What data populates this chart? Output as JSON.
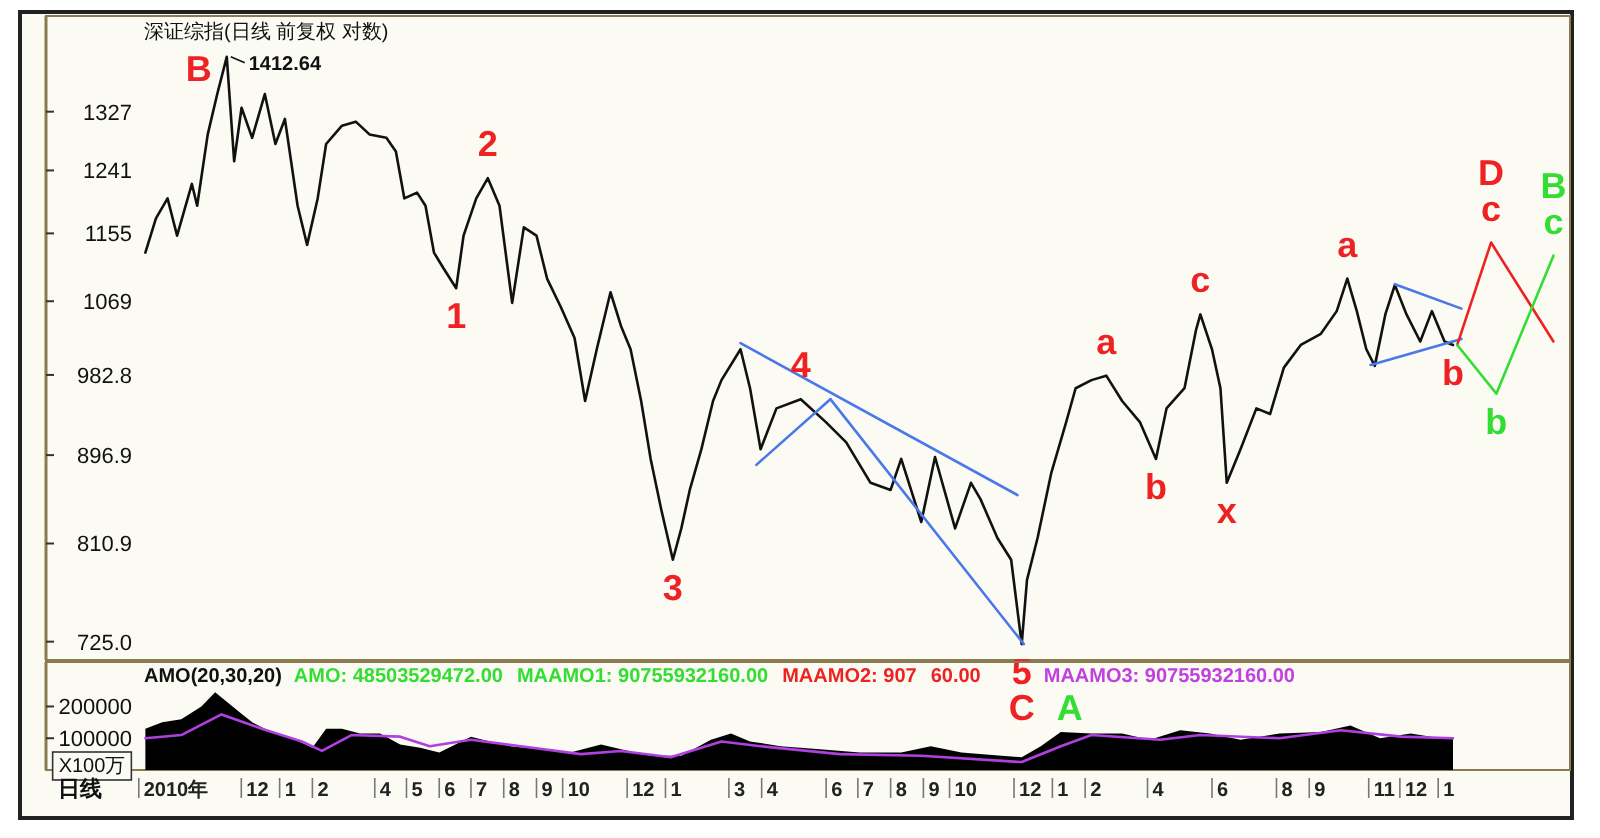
{
  "chart_data": [
    {
      "type": "line",
      "title": "深证综指(日线 前复权 对数)",
      "xlim": [
        "2010-05-15",
        "2014-04-20"
      ],
      "ylim": [
        710,
        1480
      ],
      "log": "y",
      "tick_labels": "y",
      "yticks": [
        {
          "value": 725,
          "label": "725.0"
        },
        810.9,
        896.9,
        982.8,
        1069,
        1155,
        1241,
        1327
      ],
      "series": [
        {
          "color": "#111111",
          "x": [
            "2010-08-17",
            "2010-08-27",
            "2010-09-07",
            "2010-09-16",
            "2010-09-30",
            "2010-10-05",
            "2010-10-15",
            "2010-10-24",
            "2010-11-02",
            "2010-11-09",
            "2010-11-16",
            "2010-11-26",
            "2010-12-08",
            "2010-12-18",
            "2010-12-27",
            "2011-01-08",
            "2011-01-17",
            "2011-01-27",
            "2011-02-04",
            "2011-02-19",
            "2011-03-04",
            "2011-03-17",
            "2011-04-02",
            "2011-04-11",
            "2011-04-19",
            "2011-05-01",
            "2011-05-09",
            "2011-05-17",
            "2011-05-26",
            "2011-06-07",
            "2011-06-14",
            "2011-06-26",
            "2011-07-07",
            "2011-07-18",
            "2011-07-30",
            "2011-08-10",
            "2011-08-22",
            "2011-09-01",
            "2011-09-14",
            "2011-09-27",
            "2011-10-07",
            "2011-10-18",
            "2011-10-31",
            "2011-11-10",
            "2011-11-19",
            "2011-11-29",
            "2011-12-08",
            "2011-12-18",
            "2011-12-29",
            "2012-01-06",
            "2012-01-14",
            "2012-01-25",
            "2012-02-05",
            "2012-02-13",
            "2012-03-02",
            "2012-03-11",
            "2012-03-21",
            "2012-04-05",
            "2012-04-28",
            "2012-05-22",
            "2012-06-10",
            "2012-07-03",
            "2012-07-22",
            "2012-08-01",
            "2012-08-20",
            "2012-09-02",
            "2012-09-21",
            "2012-10-06",
            "2012-10-15",
            "2012-10-31",
            "2012-11-13",
            "2012-11-23",
            "2012-11-28",
            "2012-12-08",
            "2012-12-21",
            "2013-01-04",
            "2013-01-13",
            "2013-01-28",
            "2013-02-11",
            "2013-02-26",
            "2013-03-15",
            "2013-03-30",
            "2013-04-09",
            "2013-04-26",
            "2013-05-07",
            "2013-05-11",
            "2013-05-22",
            "2013-05-30",
            "2013-06-05",
            "2013-06-18",
            "2013-07-03",
            "2013-07-16",
            "2013-07-29",
            "2013-08-14",
            "2013-09-02",
            "2013-09-17",
            "2013-09-27",
            "2013-10-06",
            "2013-10-15",
            "2013-10-23",
            "2013-11-02",
            "2013-11-11",
            "2013-11-22",
            "2013-12-05",
            "2013-12-16",
            "2013-12-28",
            "2014-01-05"
          ],
          "values": [
            1130,
            1175,
            1202,
            1152,
            1222,
            1192,
            1293,
            1354,
            1412.64,
            1254,
            1333,
            1288,
            1354,
            1279,
            1316,
            1192,
            1140,
            1202,
            1279,
            1306,
            1312,
            1293,
            1288,
            1268,
            1202,
            1210,
            1192,
            1130,
            1110,
            1085,
            1152,
            1202,
            1230,
            1192,
            1067,
            1163,
            1152,
            1097,
            1062,
            1025,
            954,
            1012,
            1080,
            1039,
            1012,
            954,
            893,
            843,
            796,
            825,
            862,
            903,
            954,
            977,
            1012,
            968,
            903,
            946,
            956,
            931,
            910,
            869,
            862,
            893,
            831,
            895,
            825,
            869,
            853,
            816,
            796,
            723,
            778,
            816,
            879,
            931,
            968,
            977,
            982,
            954,
            931,
            893,
            946,
            968,
            1035,
            1053,
            1012,
            968,
            869,
            903,
            946,
            940,
            991,
            1017,
            1030,
            1057,
            1097,
            1057,
            1012,
            993,
            1053,
            1089,
            1053,
            1021,
            1057,
            1021,
            1017
          ]
        },
        {
          "color": "#4a78e8",
          "x": [
            "2012-03-02",
            "2012-11-19"
          ],
          "values": [
            1019,
            857
          ]
        },
        {
          "color": "#4a78e8",
          "x": [
            "2012-03-17",
            "2012-05-26"
          ],
          "values": [
            887,
            956
          ]
        },
        {
          "color": "#4a78e8",
          "x": [
            "2012-05-26",
            "2012-11-25"
          ],
          "values": [
            956,
            723
          ]
        },
        {
          "color": "#4a78e8",
          "x": [
            "2013-11-11",
            "2014-01-13"
          ],
          "values": [
            1090,
            1060
          ]
        },
        {
          "color": "#4a78e8",
          "x": [
            "2013-10-19",
            "2014-01-13"
          ],
          "values": [
            994,
            1024
          ]
        },
        {
          "color": "#ee2222",
          "x": [
            "2014-01-09",
            "2014-02-10",
            "2014-04-10"
          ],
          "values": [
            1017,
            1143,
            1021
          ]
        },
        {
          "color": "#33dd33",
          "x": [
            "2014-01-09",
            "2014-02-15",
            "2014-04-10"
          ],
          "values": [
            1017,
            962,
            1126
          ]
        }
      ],
      "annotations": [
        {
          "text": "B",
          "x": "2010-11-02",
          "y": 1412.64
        },
        {
          "text": "1412.64",
          "x": "2010-11-02",
          "y": 1412.64
        },
        {
          "text": "1",
          "x": "2011-06-07",
          "y": 1085
        },
        {
          "text": "2",
          "x": "2011-07-07",
          "y": 1230
        },
        {
          "text": "3",
          "x": "2011-12-29",
          "y": 796
        },
        {
          "text": "4",
          "x": "2012-04-28",
          "y": 956
        },
        {
          "text": "5",
          "x": "2012-11-23",
          "y": 723
        },
        {
          "text": "C",
          "x": "2012-11-23",
          "y": 723
        },
        {
          "text": "A",
          "x": "2012-11-23",
          "y": 723
        },
        {
          "text": "a",
          "x": "2013-02-11",
          "y": 982
        },
        {
          "text": "b",
          "x": "2013-03-30",
          "y": 893
        },
        {
          "text": "c",
          "x": "2013-05-11",
          "y": 1053
        },
        {
          "text": "x",
          "x": "2013-06-05",
          "y": 869
        },
        {
          "text": "a",
          "x": "2013-09-27",
          "y": 1097
        },
        {
          "text": "b",
          "x": "2014-01-05",
          "y": 1017
        },
        {
          "text": "c",
          "x": "2014-02-10",
          "y": 1143
        },
        {
          "text": "D",
          "x": "2014-02-10",
          "y": 1143
        },
        {
          "text": "c",
          "x": "2014-04-10",
          "y": 1126
        },
        {
          "text": "B",
          "x": "2014-04-10",
          "y": 1126
        },
        {
          "text": "b",
          "x": "2014-02-15",
          "y": 962
        }
      ]
    },
    {
      "type": "area",
      "title": "AMO(20,30,20)",
      "xlabel": "日线",
      "ylabel": "X100万",
      "xlim": [
        "2010-05-15",
        "2014-04-20"
      ],
      "ylim": [
        0,
        340000
      ],
      "yticks": [
        100000,
        200000
      ],
      "xticks": [
        {
          "value": "2010-09-15",
          "label": "2010年"
        },
        {
          "value": "2010-12",
          "label": "12"
        },
        {
          "value": "2011-01",
          "label": "1"
        },
        {
          "value": "2011-02",
          "label": "2"
        },
        {
          "value": "2011-04",
          "label": "4"
        },
        {
          "value": "2011-05",
          "label": "5"
        },
        {
          "value": "2011-06",
          "label": "6"
        },
        {
          "value": "2011-07",
          "label": "7"
        },
        {
          "value": "2011-08",
          "label": "8"
        },
        {
          "value": "2011-09",
          "label": "9"
        },
        {
          "value": "2011-10",
          "label": "10"
        },
        {
          "value": "2011-12",
          "label": "12"
        },
        {
          "value": "2012-01",
          "label": "1"
        },
        {
          "value": "2012-03",
          "label": "3"
        },
        {
          "value": "2012-04",
          "label": "4"
        },
        {
          "value": "2012-06",
          "label": "6"
        },
        {
          "value": "2012-07",
          "label": "7"
        },
        {
          "value": "2012-08",
          "label": "8"
        },
        {
          "value": "2012-09",
          "label": "9"
        },
        {
          "value": "2012-10",
          "label": "10"
        },
        {
          "value": "2012-12",
          "label": "12"
        },
        {
          "value": "2013-01",
          "label": "1"
        },
        {
          "value": "2013-02",
          "label": "2"
        },
        {
          "value": "2013-04",
          "label": "4"
        },
        {
          "value": "2013-06",
          "label": "6"
        },
        {
          "value": "2013-08",
          "label": "8"
        },
        {
          "value": "2013-09",
          "label": "9"
        },
        {
          "value": "2013-11",
          "label": "11"
        },
        {
          "value": "2013-12",
          "label": "12"
        },
        {
          "value": "2014-01",
          "label": "1"
        }
      ],
      "annotations": [
        "AMO: 48503529472.00",
        "MAAMO1: 90755932160.00",
        "MAAMO2: 907",
        "60.00",
        "MAAMO3: 90755932160.00"
      ],
      "series": [
        {
          "color": "#000000",
          "x": [
            "2010-08-17",
            "2010-09-02",
            "2010-09-20",
            "2010-10-09",
            "2010-10-22",
            "2010-11-02",
            "2010-11-13",
            "2010-11-26",
            "2010-12-14",
            "2011-01-03",
            "2011-01-22",
            "2011-02-04",
            "2011-02-19",
            "2011-03-08",
            "2011-03-27",
            "2011-04-15",
            "2011-05-04",
            "2011-05-22",
            "2011-06-21",
            "2011-07-09",
            "2011-07-28",
            "2011-08-26",
            "2011-09-23",
            "2011-10-22",
            "2011-11-10",
            "2011-12-08",
            "2012-01-06",
            "2012-02-03",
            "2012-02-22",
            "2012-03-11",
            "2012-04-09",
            "2012-05-16",
            "2012-06-23",
            "2012-08-01",
            "2012-08-29",
            "2012-09-27",
            "2012-11-04",
            "2012-11-23",
            "2012-12-11",
            "2012-12-30",
            "2013-01-28",
            "2013-02-26",
            "2013-03-24",
            "2013-04-22",
            "2013-05-20",
            "2013-06-18",
            "2013-07-25",
            "2013-09-02",
            "2013-09-30",
            "2013-10-28",
            "2013-11-26",
            "2013-12-24",
            "2014-01-05"
          ],
          "values": [
            130000,
            150000,
            160000,
            200000,
            245000,
            215000,
            185000,
            150000,
            120000,
            100000,
            70000,
            130000,
            130000,
            115000,
            115000,
            80000,
            70000,
            55000,
            105000,
            90000,
            75000,
            65000,
            55000,
            80000,
            65000,
            45000,
            45000,
            95000,
            115000,
            90000,
            75000,
            65000,
            55000,
            55000,
            75000,
            55000,
            45000,
            40000,
            75000,
            120000,
            115000,
            115000,
            95000,
            125000,
            115000,
            95000,
            115000,
            120000,
            140000,
            100000,
            115000,
            100000,
            100000
          ]
        },
        {
          "type": "line",
          "color": "#b040e0",
          "x": [
            "2010-08-17",
            "2010-09-20",
            "2010-10-28",
            "2010-12-05",
            "2011-01-12",
            "2011-01-31",
            "2011-02-28",
            "2011-04-15",
            "2011-05-13",
            "2011-06-21",
            "2011-08-07",
            "2011-10-03",
            "2011-11-10",
            "2011-12-27",
            "2012-02-13",
            "2012-03-21",
            "2012-06-04",
            "2012-08-20",
            "2012-11-23",
            "2012-12-30",
            "2013-01-28",
            "2013-04-03",
            "2013-05-11",
            "2013-07-25",
            "2013-09-21",
            "2013-11-17",
            "2014-01-05"
          ],
          "values": [
            100000,
            110000,
            175000,
            130000,
            90000,
            60000,
            110000,
            105000,
            75000,
            95000,
            75000,
            50000,
            60000,
            40000,
            90000,
            75000,
            50000,
            45000,
            25000,
            75000,
            110000,
            95000,
            110000,
            100000,
            125000,
            105000,
            100000
          ]
        }
      ]
    }
  ]
}
